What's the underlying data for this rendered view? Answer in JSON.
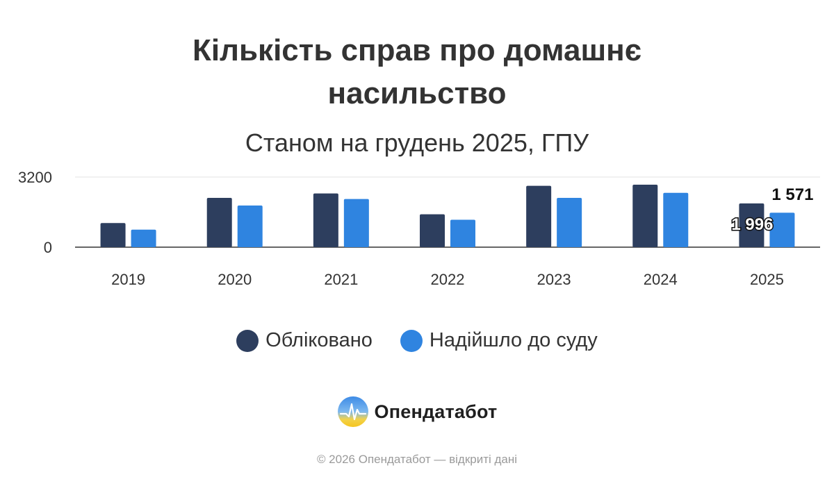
{
  "header": {
    "title_line1": "Кількість справ про домашнє",
    "title_line2": "насильство",
    "subtitle": "Станом на грудень 2025, ГПУ"
  },
  "chart_data": {
    "type": "bar",
    "categories": [
      "2019",
      "2020",
      "2021",
      "2022",
      "2023",
      "2024",
      "2025"
    ],
    "series": [
      {
        "name": "Обліковано",
        "color": "#2d3e5e",
        "values": [
          1100,
          2250,
          2450,
          1500,
          2800,
          2850,
          1996
        ]
      },
      {
        "name": "Надійшло до суду",
        "color": "#2f84e0",
        "values": [
          800,
          1900,
          2200,
          1250,
          2250,
          2480,
          1571
        ]
      }
    ],
    "ylim": [
      0,
      3200
    ],
    "yticks": [
      "0",
      "3200"
    ],
    "grid": true,
    "legend_position": "bottom",
    "data_labels": [
      {
        "category": "2025",
        "series": "Обліковано",
        "text": "1 996"
      },
      {
        "category": "2025",
        "series": "Надійшло до суду",
        "text": "1 571"
      }
    ]
  },
  "brand": {
    "name": "Опендатабот",
    "logo_icon": "opendatabot-logo-icon"
  },
  "footer": {
    "text": "© 2026 Опендатабот — відкриті дані"
  }
}
